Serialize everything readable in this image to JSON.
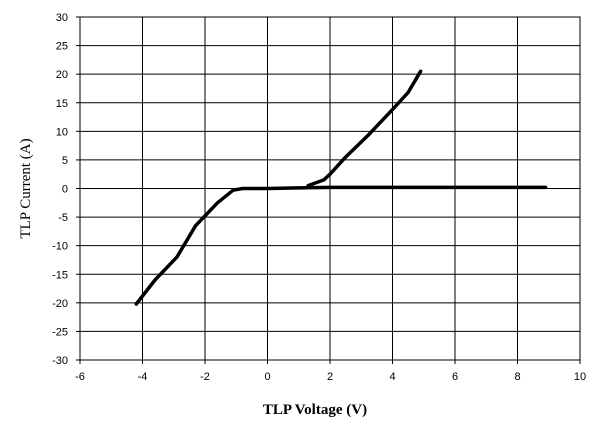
{
  "chart_data": {
    "type": "line",
    "title": "",
    "xlabel": "TLP Voltage (V)",
    "ylabel": "TLP Current (A)",
    "xlim": [
      -6,
      10
    ],
    "ylim": [
      -30,
      30
    ],
    "x_ticks": [
      -6,
      -4,
      -2,
      0,
      2,
      4,
      6,
      8,
      10
    ],
    "y_ticks": [
      30,
      25,
      20,
      15,
      10,
      5,
      0,
      -5,
      -10,
      -15,
      -20,
      -25,
      -30
    ],
    "grid": true,
    "legend": "none",
    "line_color": "#000000",
    "series": [
      {
        "x": [
          -4.2,
          -3.6,
          -2.9,
          -2.3,
          -1.6,
          -1.1,
          -0.8,
          0,
          1,
          2,
          4,
          6,
          8,
          8.9
        ],
        "y": [
          -20.2,
          -16,
          -12,
          -6.5,
          -2.5,
          -0.3,
          0,
          0,
          0.1,
          0.2,
          0.2,
          0.2,
          0.2,
          0.2
        ]
      },
      {
        "x": [
          1.3,
          1.8,
          2.0,
          2.5,
          3.2,
          4.0,
          4.5,
          4.9
        ],
        "y": [
          0.5,
          1.5,
          2.5,
          5.5,
          9.2,
          13.8,
          16.8,
          20.5
        ]
      }
    ]
  }
}
